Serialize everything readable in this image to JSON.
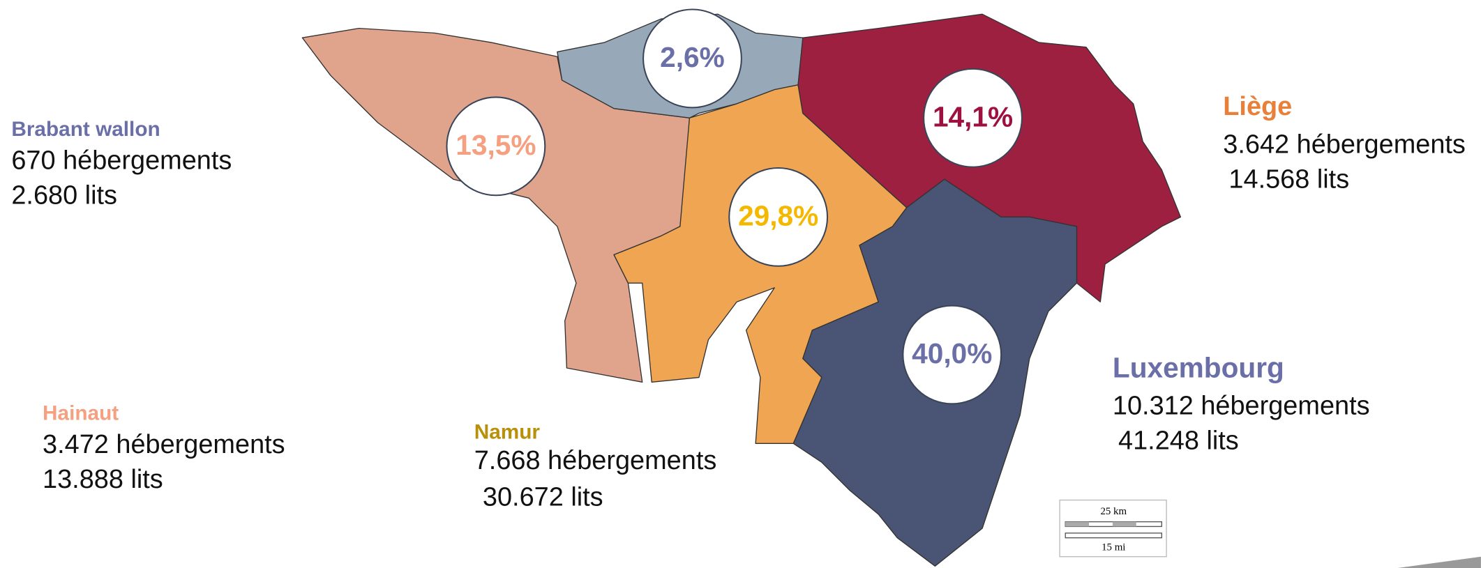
{
  "provinces": [
    {
      "name": "Brabant wallon",
      "hebergements": "670 hébergements",
      "lits": "2.680 lits",
      "share": "2,6%"
    },
    {
      "name": "Hainaut",
      "hebergements": "3.472 hébergements",
      "lits": "13.888 lits",
      "share": "13,5%"
    },
    {
      "name": "Namur",
      "hebergements": "7.668 hébergements",
      "lits": "30.672 lits",
      "share": "29,8%"
    },
    {
      "name": "Liège",
      "hebergements": "3.642 hébergements",
      "lits": "14.568 lits",
      "share": "14,1%"
    },
    {
      "name": "Luxembourg",
      "hebergements": "10.312 hébergements",
      "lits": "41.248 lits",
      "share": "40,0%"
    }
  ],
  "scale_bar": {
    "km": "25 km",
    "mi": "15 mi"
  }
}
